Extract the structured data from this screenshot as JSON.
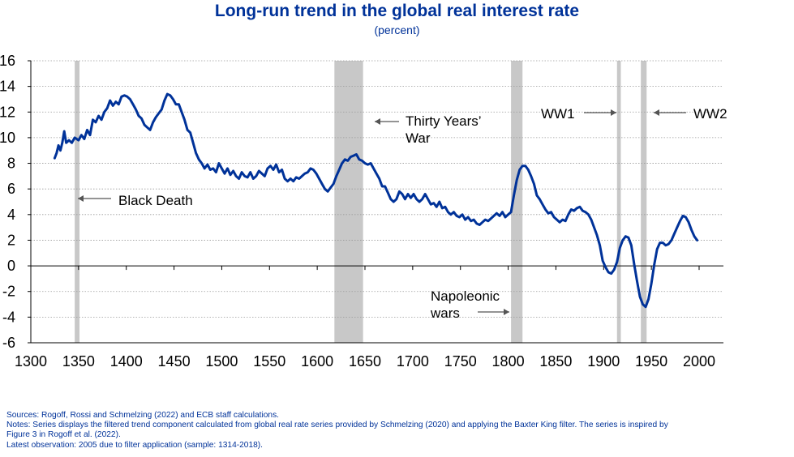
{
  "chart_data": {
    "type": "line",
    "title": "Long-run trend in the global real interest rate",
    "subtitle": "(percent)",
    "xlim": [
      1300,
      2000
    ],
    "ylim": [
      -6,
      16
    ],
    "xticks": [
      1300,
      1350,
      1400,
      1450,
      1500,
      1550,
      1600,
      1650,
      1700,
      1750,
      1800,
      1850,
      1900,
      1950,
      2000
    ],
    "yticks": [
      -6,
      -4,
      -2,
      0,
      2,
      4,
      6,
      8,
      10,
      12,
      14,
      16
    ],
    "grid": "horizontal dotted",
    "line_color": "#003299",
    "shade_color": "#c8c8c8",
    "shaded_periods": [
      {
        "start": 1346,
        "end": 1351
      },
      {
        "start": 1618,
        "end": 1648
      },
      {
        "start": 1803,
        "end": 1815
      },
      {
        "start": 1914,
        "end": 1918
      },
      {
        "start": 1939,
        "end": 1945
      }
    ],
    "annotations": [
      {
        "id": "black-death",
        "lines": [
          "Black Death"
        ],
        "arrow": "left"
      },
      {
        "id": "thirty-years-war",
        "lines": [
          "Thirty Years’",
          "War"
        ],
        "arrow": "left"
      },
      {
        "id": "napoleonic-wars",
        "lines": [
          "Napoleonic",
          "wars"
        ],
        "arrow": "right"
      },
      {
        "id": "ww1",
        "lines": [
          "WW1"
        ],
        "arrow": "right"
      },
      {
        "id": "ww2",
        "lines": [
          "WW2"
        ],
        "arrow": "left"
      }
    ],
    "series": [
      {
        "points": [
          [
            1325,
            8.4
          ],
          [
            1327,
            8.8
          ],
          [
            1329,
            9.4
          ],
          [
            1331,
            9.0
          ],
          [
            1333,
            9.6
          ],
          [
            1335,
            10.5
          ],
          [
            1337,
            9.6
          ],
          [
            1340,
            9.8
          ],
          [
            1343,
            9.6
          ],
          [
            1346,
            10.0
          ],
          [
            1350,
            9.8
          ],
          [
            1353,
            10.2
          ],
          [
            1356,
            9.9
          ],
          [
            1359,
            10.6
          ],
          [
            1362,
            10.2
          ],
          [
            1365,
            11.4
          ],
          [
            1368,
            11.2
          ],
          [
            1371,
            11.7
          ],
          [
            1374,
            11.4
          ],
          [
            1377,
            12.0
          ],
          [
            1380,
            12.3
          ],
          [
            1383,
            12.9
          ],
          [
            1386,
            12.5
          ],
          [
            1389,
            12.8
          ],
          [
            1392,
            12.6
          ],
          [
            1395,
            13.2
          ],
          [
            1398,
            13.3
          ],
          [
            1401,
            13.2
          ],
          [
            1404,
            13.0
          ],
          [
            1407,
            12.6
          ],
          [
            1410,
            12.2
          ],
          [
            1413,
            11.7
          ],
          [
            1416,
            11.5
          ],
          [
            1419,
            11.0
          ],
          [
            1422,
            10.8
          ],
          [
            1425,
            10.6
          ],
          [
            1428,
            11.2
          ],
          [
            1431,
            11.6
          ],
          [
            1434,
            11.9
          ],
          [
            1437,
            12.2
          ],
          [
            1440,
            12.9
          ],
          [
            1443,
            13.4
          ],
          [
            1446,
            13.3
          ],
          [
            1449,
            13.0
          ],
          [
            1452,
            12.6
          ],
          [
            1455,
            12.6
          ],
          [
            1458,
            12.0
          ],
          [
            1461,
            11.4
          ],
          [
            1464,
            10.6
          ],
          [
            1467,
            10.4
          ],
          [
            1470,
            9.6
          ],
          [
            1473,
            8.8
          ],
          [
            1476,
            8.3
          ],
          [
            1479,
            8.0
          ],
          [
            1482,
            7.6
          ],
          [
            1485,
            7.9
          ],
          [
            1488,
            7.5
          ],
          [
            1491,
            7.6
          ],
          [
            1494,
            7.3
          ],
          [
            1497,
            8.0
          ],
          [
            1500,
            7.6
          ],
          [
            1503,
            7.2
          ],
          [
            1506,
            7.6
          ],
          [
            1509,
            7.1
          ],
          [
            1512,
            7.4
          ],
          [
            1515,
            7.0
          ],
          [
            1518,
            6.8
          ],
          [
            1521,
            7.3
          ],
          [
            1524,
            7.0
          ],
          [
            1527,
            6.9
          ],
          [
            1530,
            7.3
          ],
          [
            1533,
            6.8
          ],
          [
            1536,
            7.0
          ],
          [
            1539,
            7.4
          ],
          [
            1542,
            7.2
          ],
          [
            1545,
            7.0
          ],
          [
            1548,
            7.6
          ],
          [
            1551,
            7.8
          ],
          [
            1554,
            7.5
          ],
          [
            1557,
            7.9
          ],
          [
            1560,
            7.3
          ],
          [
            1563,
            7.5
          ],
          [
            1566,
            6.8
          ],
          [
            1569,
            6.6
          ],
          [
            1572,
            6.8
          ],
          [
            1575,
            6.6
          ],
          [
            1578,
            6.9
          ],
          [
            1581,
            6.8
          ],
          [
            1584,
            7.0
          ],
          [
            1587,
            7.2
          ],
          [
            1590,
            7.3
          ],
          [
            1593,
            7.6
          ],
          [
            1596,
            7.5
          ],
          [
            1599,
            7.2
          ],
          [
            1602,
            6.8
          ],
          [
            1605,
            6.4
          ],
          [
            1608,
            6.0
          ],
          [
            1611,
            5.8
          ],
          [
            1614,
            6.1
          ],
          [
            1617,
            6.4
          ],
          [
            1620,
            7.0
          ],
          [
            1623,
            7.5
          ],
          [
            1626,
            8.0
          ],
          [
            1629,
            8.3
          ],
          [
            1632,
            8.2
          ],
          [
            1635,
            8.5
          ],
          [
            1638,
            8.6
          ],
          [
            1641,
            8.7
          ],
          [
            1644,
            8.3
          ],
          [
            1647,
            8.2
          ],
          [
            1650,
            8.0
          ],
          [
            1653,
            7.9
          ],
          [
            1656,
            8.0
          ],
          [
            1659,
            7.6
          ],
          [
            1662,
            7.2
          ],
          [
            1665,
            6.8
          ],
          [
            1668,
            6.2
          ],
          [
            1671,
            6.2
          ],
          [
            1674,
            5.7
          ],
          [
            1677,
            5.2
          ],
          [
            1680,
            5.0
          ],
          [
            1683,
            5.2
          ],
          [
            1686,
            5.8
          ],
          [
            1689,
            5.6
          ],
          [
            1692,
            5.2
          ],
          [
            1695,
            5.6
          ],
          [
            1698,
            5.3
          ],
          [
            1701,
            5.6
          ],
          [
            1704,
            5.2
          ],
          [
            1707,
            5.0
          ],
          [
            1710,
            5.2
          ],
          [
            1713,
            5.6
          ],
          [
            1716,
            5.2
          ],
          [
            1719,
            4.8
          ],
          [
            1722,
            4.9
          ],
          [
            1725,
            4.6
          ],
          [
            1728,
            5.0
          ],
          [
            1731,
            4.5
          ],
          [
            1734,
            4.6
          ],
          [
            1737,
            4.2
          ],
          [
            1740,
            4.0
          ],
          [
            1743,
            4.2
          ],
          [
            1746,
            3.9
          ],
          [
            1749,
            3.8
          ],
          [
            1752,
            4.0
          ],
          [
            1755,
            3.6
          ],
          [
            1758,
            3.8
          ],
          [
            1761,
            3.5
          ],
          [
            1764,
            3.6
          ],
          [
            1767,
            3.3
          ],
          [
            1770,
            3.2
          ],
          [
            1773,
            3.4
          ],
          [
            1776,
            3.6
          ],
          [
            1779,
            3.5
          ],
          [
            1782,
            3.7
          ],
          [
            1785,
            3.9
          ],
          [
            1788,
            4.1
          ],
          [
            1791,
            3.9
          ],
          [
            1794,
            4.2
          ],
          [
            1797,
            3.8
          ],
          [
            1800,
            4.0
          ],
          [
            1803,
            4.2
          ],
          [
            1806,
            5.5
          ],
          [
            1809,
            6.7
          ],
          [
            1812,
            7.5
          ],
          [
            1815,
            7.8
          ],
          [
            1818,
            7.8
          ],
          [
            1821,
            7.5
          ],
          [
            1824,
            7.0
          ],
          [
            1827,
            6.4
          ],
          [
            1830,
            5.5
          ],
          [
            1833,
            5.2
          ],
          [
            1836,
            4.8
          ],
          [
            1839,
            4.4
          ],
          [
            1842,
            4.1
          ],
          [
            1845,
            4.2
          ],
          [
            1848,
            3.8
          ],
          [
            1851,
            3.6
          ],
          [
            1854,
            3.4
          ],
          [
            1857,
            3.6
          ],
          [
            1860,
            3.5
          ],
          [
            1863,
            4.0
          ],
          [
            1866,
            4.4
          ],
          [
            1869,
            4.3
          ],
          [
            1872,
            4.5
          ],
          [
            1875,
            4.6
          ],
          [
            1878,
            4.3
          ],
          [
            1881,
            4.2
          ],
          [
            1884,
            4.0
          ],
          [
            1887,
            3.6
          ],
          [
            1890,
            3.0
          ],
          [
            1893,
            2.4
          ],
          [
            1896,
            1.6
          ],
          [
            1899,
            0.4
          ],
          [
            1902,
            -0.1
          ],
          [
            1905,
            -0.5
          ],
          [
            1908,
            -0.6
          ],
          [
            1911,
            -0.3
          ],
          [
            1914,
            0.3
          ],
          [
            1917,
            1.4
          ],
          [
            1920,
            2.0
          ],
          [
            1923,
            2.3
          ],
          [
            1926,
            2.2
          ],
          [
            1929,
            1.6
          ],
          [
            1932,
            0.1
          ],
          [
            1935,
            -1.2
          ],
          [
            1938,
            -2.4
          ],
          [
            1941,
            -3.0
          ],
          [
            1944,
            -3.2
          ],
          [
            1947,
            -2.6
          ],
          [
            1950,
            -1.4
          ],
          [
            1953,
            0.1
          ],
          [
            1956,
            1.3
          ],
          [
            1959,
            1.8
          ],
          [
            1962,
            1.8
          ],
          [
            1965,
            1.6
          ],
          [
            1968,
            1.7
          ],
          [
            1971,
            2.0
          ],
          [
            1974,
            2.5
          ],
          [
            1977,
            3.0
          ],
          [
            1980,
            3.5
          ],
          [
            1983,
            3.9
          ],
          [
            1986,
            3.8
          ],
          [
            1989,
            3.4
          ],
          [
            1992,
            2.8
          ],
          [
            1995,
            2.3
          ],
          [
            1998,
            2.0
          ]
        ]
      }
    ]
  },
  "notes": {
    "sources": "Sources: Rogoff, Rossi and Schmelzing (2022) and ECB staff calculations.",
    "notes_line1": "Notes: Series displays the filtered trend component calculated from global real rate series provided by Schmelzing (2020) and applying the Baxter King filter. The series is inspired by",
    "notes_line2": "Figure 3 in Rogoff et al. (2022).",
    "latest": "Latest observation: 2005 due to filter application (sample: 1314-2018)."
  }
}
